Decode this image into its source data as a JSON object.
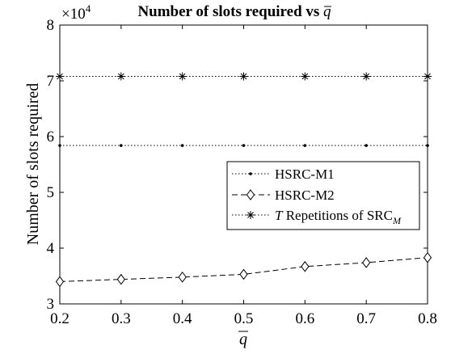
{
  "chart_data": {
    "type": "line",
    "title_prefix": "Number of slots required vs",
    "title_symbol": "q",
    "xlabel": "q",
    "ylabel": "Number of slots required",
    "y_multiplier_base": "×10",
    "y_multiplier_exp": "4",
    "xlim": [
      0.2,
      0.8
    ],
    "ylim": [
      3,
      8
    ],
    "xticks": [
      "0.2",
      "0.3",
      "0.4",
      "0.5",
      "0.6",
      "0.7",
      "0.8"
    ],
    "yticks": [
      "3",
      "4",
      "5",
      "6",
      "7",
      "8"
    ],
    "x": [
      0.2,
      0.3,
      0.4,
      0.5,
      0.6,
      0.7,
      0.8
    ],
    "grid": false,
    "legend_position": "right-center",
    "series": [
      {
        "name": "HSRC-M1",
        "values": [
          5.84,
          5.84,
          5.84,
          5.84,
          5.84,
          5.84,
          5.84
        ],
        "line_style": "dotted",
        "marker": "dot",
        "color": "#000000"
      },
      {
        "name": "HSRC-M2",
        "values": [
          3.4,
          3.44,
          3.48,
          3.53,
          3.67,
          3.74,
          3.83
        ],
        "line_style": "dashed",
        "marker": "diamond",
        "color": "#000000"
      },
      {
        "name_parts": [
          "T",
          " Repetitions of SRC",
          "M"
        ],
        "values": [
          7.08,
          7.08,
          7.08,
          7.08,
          7.08,
          7.08,
          7.08
        ],
        "line_style": "dotted",
        "marker": "asterisk",
        "color": "#000000"
      }
    ]
  }
}
